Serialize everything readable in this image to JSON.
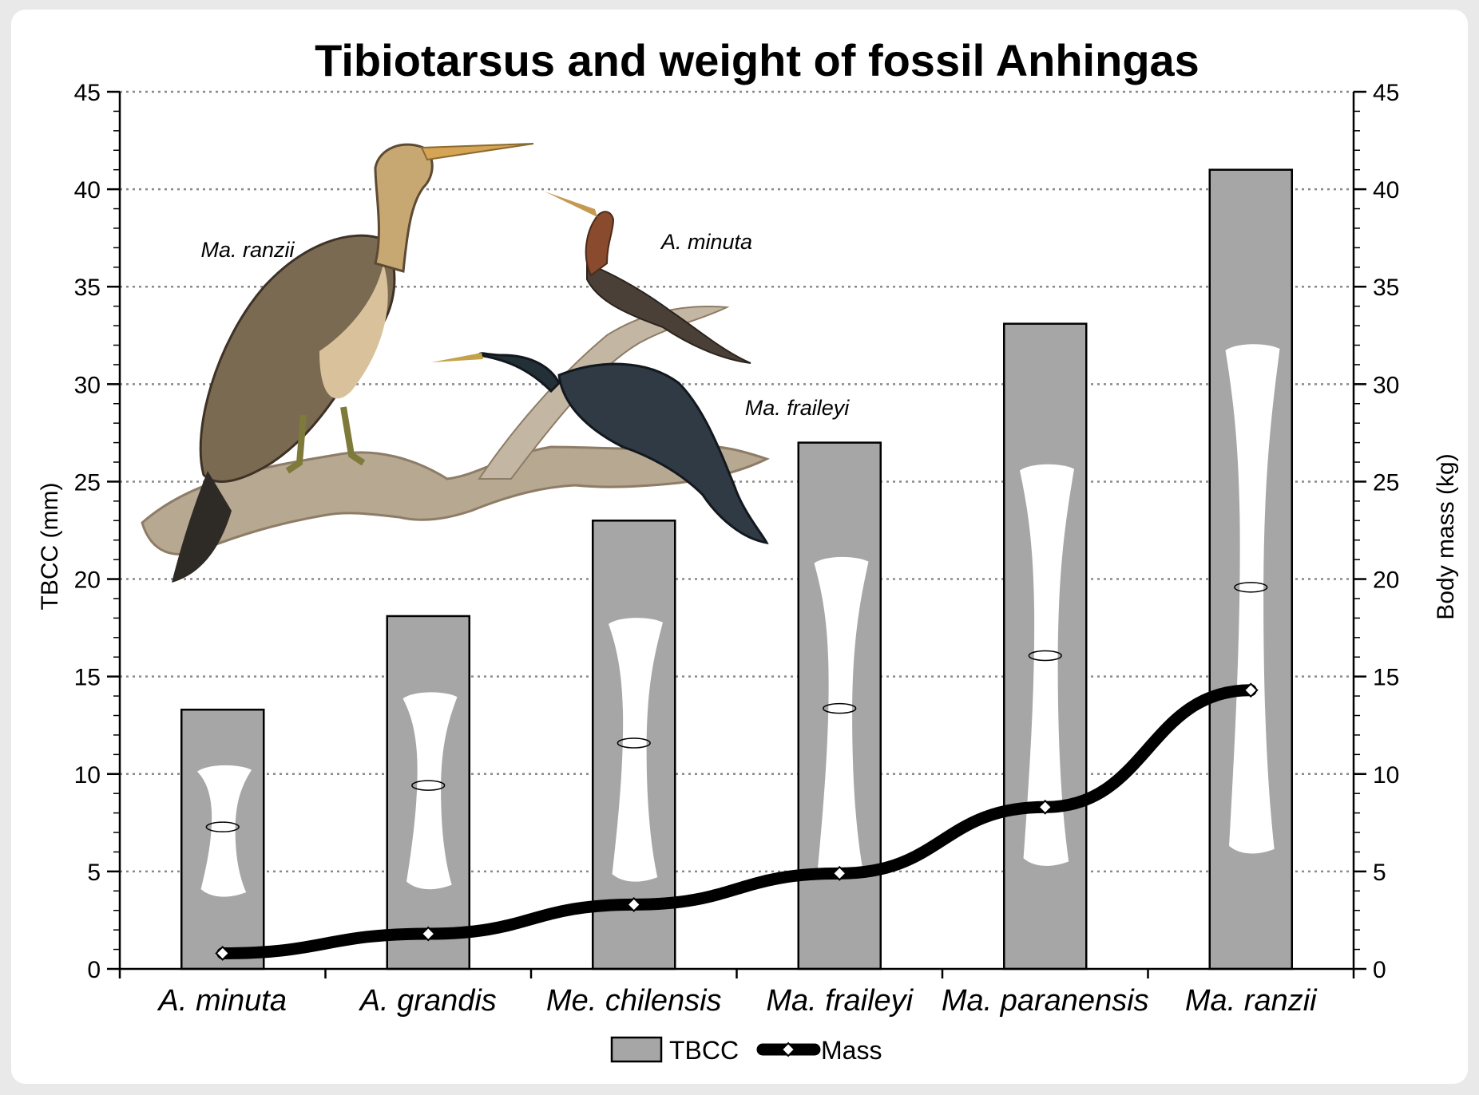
{
  "chart_data": {
    "type": "bar",
    "title": "Tibiotarsus and weight of fossil Anhingas",
    "ylabel": "TBCC (mm)",
    "y2label": "Body mass (kg)",
    "ylim": [
      0,
      45
    ],
    "y2lim": [
      0,
      45
    ],
    "yticks": [
      "0",
      "5",
      "10",
      "15",
      "20",
      "25",
      "30",
      "35",
      "40",
      "45"
    ],
    "grid": true,
    "legend_position": "bottom",
    "categories": [
      "A. minuta",
      "A. grandis",
      "Me. chilensis",
      "Ma. fraileyi",
      "Ma. paranensis",
      "Ma. ranzii"
    ],
    "series": [
      {
        "name": "TBCC",
        "kind": "bar",
        "axis": "left",
        "color": "#a6a6a6",
        "values": [
          13.3,
          18.1,
          23.0,
          27.0,
          33.1,
          41.0
        ]
      },
      {
        "name": "Mass",
        "kind": "line",
        "axis": "right",
        "color": "#000000",
        "values": [
          0.8,
          1.8,
          3.3,
          4.9,
          8.3,
          14.3
        ]
      }
    ],
    "illustration_labels": [
      "Ma. ranzii",
      "A. minuta",
      "Ma. fraileyi"
    ]
  }
}
